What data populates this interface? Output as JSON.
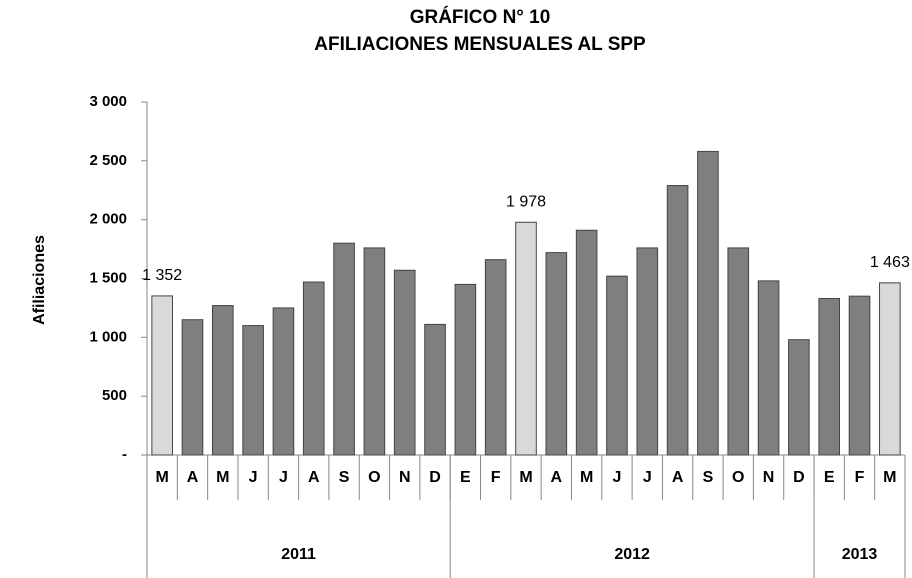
{
  "chart_data": {
    "type": "bar",
    "title": [
      "GRÁFICO N° 10",
      "AFILIACIONES MENSUALES AL SPP"
    ],
    "y_label": "Afiliaciones",
    "categories": [
      "M",
      "A",
      "M",
      "J",
      "J",
      "A",
      "S",
      "O",
      "N",
      "D",
      "E",
      "F",
      "M",
      "A",
      "M",
      "J",
      "J",
      "A",
      "S",
      "O",
      "N",
      "D",
      "E",
      "F",
      "M"
    ],
    "values": [
      1352,
      1150,
      1270,
      1100,
      1250,
      1470,
      1800,
      1760,
      1570,
      1110,
      1450,
      1660,
      1978,
      1720,
      1910,
      1520,
      1760,
      2290,
      2580,
      1760,
      1480,
      980,
      1330,
      1350,
      1463
    ],
    "value_labels": [
      "1 352",
      null,
      null,
      null,
      null,
      null,
      null,
      null,
      null,
      null,
      null,
      null,
      "1 978",
      null,
      null,
      null,
      null,
      null,
      null,
      null,
      null,
      null,
      null,
      null,
      "1 463"
    ],
    "colors": [
      "#d9d9d9",
      "#7f7f7f",
      "#7f7f7f",
      "#7f7f7f",
      "#7f7f7f",
      "#7f7f7f",
      "#7f7f7f",
      "#7f7f7f",
      "#7f7f7f",
      "#7f7f7f",
      "#7f7f7f",
      "#7f7f7f",
      "#d9d9d9",
      "#7f7f7f",
      "#7f7f7f",
      "#7f7f7f",
      "#7f7f7f",
      "#7f7f7f",
      "#7f7f7f",
      "#7f7f7f",
      "#7f7f7f",
      "#7f7f7f",
      "#7f7f7f",
      "#7f7f7f",
      "#d9d9d9"
    ],
    "groups": [
      {
        "label": "2011",
        "count": 10
      },
      {
        "label": "2012",
        "count": 12
      },
      {
        "label": "2013",
        "count": 3
      }
    ],
    "ylim": [
      0,
      3000
    ],
    "yticks": [
      {
        "value": 0,
        "label": "-"
      },
      500,
      {
        "value": 1000,
        "label": "1 000"
      },
      {
        "value": 1500,
        "label": "1 500"
      },
      {
        "value": 2000,
        "label": "2 000"
      },
      {
        "value": 2500,
        "label": "2 500"
      },
      {
        "value": 3000,
        "label": "3 000"
      }
    ]
  }
}
